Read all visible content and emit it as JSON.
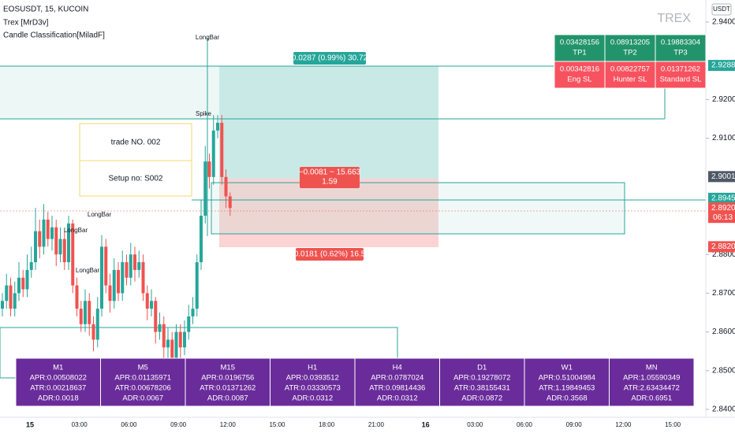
{
  "header": {
    "symbol": "EOSUSDT, 15, KUCOIN",
    "indicators": [
      "Trex [MrD3v]",
      "Candle Classification[MiladF]"
    ],
    "watermark": "TREX",
    "currency": "USDT"
  },
  "price_axis": {
    "ticks": [
      {
        "value": 2.94,
        "label": "2.9400"
      },
      {
        "value": 2.92,
        "label": "2.9200"
      },
      {
        "value": 2.91,
        "label": "2.9100"
      },
      {
        "value": 2.88,
        "label": "2.8800"
      },
      {
        "value": 2.87,
        "label": "2.8700"
      },
      {
        "value": 2.86,
        "label": "2.8600"
      },
      {
        "value": 2.85,
        "label": "2.8500"
      },
      {
        "value": 2.84,
        "label": "2.8400"
      }
    ],
    "badges": [
      {
        "value": 2.9288,
        "label": "2.9288",
        "kind": "tp"
      },
      {
        "value": 2.9001,
        "label": "2.9001",
        "kind": "level"
      },
      {
        "value": 2.8945,
        "label": "2.8945",
        "kind": "entry"
      },
      {
        "value": 2.892,
        "label": "2.8920",
        "kind": "last",
        "countdown": "06:13"
      },
      {
        "value": 2.882,
        "label": "2.8820",
        "kind": "sl"
      }
    ]
  },
  "time_axis": [
    "15",
    "03:00",
    "06:00",
    "09:00",
    "12:00",
    "15:00",
    "18:00",
    "21:00",
    "16",
    "03:00",
    "06:00",
    "09:00",
    "12:00",
    "15:00"
  ],
  "candles": [
    [
      2.866,
      2.87,
      2.864,
      2.868
    ],
    [
      2.868,
      2.875,
      2.866,
      2.872
    ],
    [
      2.872,
      2.874,
      2.864,
      2.866
    ],
    [
      2.866,
      2.873,
      2.864,
      2.87
    ],
    [
      2.87,
      2.878,
      2.868,
      2.874
    ],
    [
      2.874,
      2.876,
      2.869,
      2.871
    ],
    [
      2.871,
      2.88,
      2.869,
      2.876
    ],
    [
      2.876,
      2.882,
      2.874,
      2.878
    ],
    [
      2.878,
      2.892,
      2.876,
      2.886
    ],
    [
      2.886,
      2.889,
      2.879,
      2.882
    ],
    [
      2.882,
      2.893,
      2.88,
      2.889
    ],
    [
      2.889,
      2.891,
      2.882,
      2.884
    ],
    [
      2.884,
      2.89,
      2.881,
      2.887
    ],
    [
      2.887,
      2.889,
      2.877,
      2.88
    ],
    [
      2.88,
      2.887,
      2.878,
      2.884
    ],
    [
      2.884,
      2.886,
      2.876,
      2.878
    ],
    [
      2.878,
      2.89,
      2.876,
      2.888
    ],
    [
      2.888,
      2.889,
      2.87,
      2.872
    ],
    [
      2.872,
      2.874,
      2.864,
      2.866
    ],
    [
      2.866,
      2.868,
      2.86,
      2.862
    ],
    [
      2.862,
      2.871,
      2.86,
      2.868
    ],
    [
      2.868,
      2.87,
      2.859,
      2.862
    ],
    [
      2.862,
      2.864,
      2.855,
      2.858
    ],
    [
      2.858,
      2.869,
      2.856,
      2.866
    ],
    [
      2.866,
      2.885,
      2.864,
      2.882
    ],
    [
      2.882,
      2.884,
      2.87,
      2.872
    ],
    [
      2.872,
      2.875,
      2.865,
      2.868
    ],
    [
      2.868,
      2.879,
      2.866,
      2.876
    ],
    [
      2.876,
      2.878,
      2.868,
      2.87
    ],
    [
      2.87,
      2.881,
      2.868,
      2.878
    ],
    [
      2.878,
      2.88,
      2.872,
      2.874
    ],
    [
      2.874,
      2.883,
      2.872,
      2.88
    ],
    [
      2.88,
      2.882,
      2.873,
      2.876
    ],
    [
      2.876,
      2.881,
      2.874,
      2.878
    ],
    [
      2.878,
      2.88,
      2.868,
      2.87
    ],
    [
      2.87,
      2.872,
      2.863,
      2.866
    ],
    [
      2.866,
      2.871,
      2.864,
      2.868
    ],
    [
      2.868,
      2.869,
      2.857,
      2.86
    ],
    [
      2.86,
      2.865,
      2.858,
      2.862
    ],
    [
      2.862,
      2.864,
      2.853,
      2.856
    ],
    [
      2.856,
      2.861,
      2.852,
      2.858
    ],
    [
      2.858,
      2.86,
      2.849,
      2.852
    ],
    [
      2.852,
      2.862,
      2.851,
      2.86
    ],
    [
      2.86,
      2.862,
      2.853,
      2.856
    ],
    [
      2.856,
      2.863,
      2.854,
      2.86
    ],
    [
      2.86,
      2.867,
      2.858,
      2.864
    ],
    [
      2.864,
      2.869,
      2.862,
      2.866
    ],
    [
      2.866,
      2.88,
      2.864,
      2.878
    ],
    [
      2.878,
      2.894,
      2.876,
      2.89
    ],
    [
      2.89,
      2.908,
      2.888,
      2.904
    ],
    [
      2.904,
      2.906,
      2.897,
      2.9
    ],
    [
      2.9,
      2.916,
      2.898,
      2.912
    ],
    [
      2.912,
      2.916,
      2.91,
      2.914
    ],
    [
      2.914,
      2.916,
      2.898,
      2.9
    ],
    [
      2.9,
      2.902,
      2.892,
      2.895
    ],
    [
      2.895,
      2.896,
      2.89,
      2.892
    ]
  ],
  "annotations": [
    "LongBar",
    "Spike",
    "LongBar",
    "LongBar",
    "LongBar"
  ],
  "trade_box": {
    "trade": "trade NO. 002",
    "setup": "Setup no: S002"
  },
  "position": {
    "target": "0.0287 (0.99%) 30.72",
    "open": "−0.0081 ~ 15.663",
    "ratio": "1.59",
    "stop": "0.0181 (0.62%) 16.5"
  },
  "targets_table": {
    "tp": [
      [
        "0.03428156",
        "TP1"
      ],
      [
        "0.08913205",
        "TP2"
      ],
      [
        "0.19883304",
        "TP3"
      ]
    ],
    "sl": [
      [
        "0.00342816",
        "Eng SL"
      ],
      [
        "0.00822757",
        "Hunter SL"
      ],
      [
        "0.01371262",
        "Standard SL"
      ]
    ]
  },
  "stats": [
    [
      "M1",
      "APR:0.00508022",
      "ATR:0.00218637",
      "ADR:0.0018"
    ],
    [
      "M5",
      "APR:0.01135971",
      "ATR:0.00678206",
      "ADR:0.0067"
    ],
    [
      "M15",
      "APR:0.0196756",
      "ATR:0.01371262",
      "ADR:0.0087"
    ],
    [
      "H1",
      "APR:0.0393512",
      "ATR:0.03330573",
      "ADR:0.0312"
    ],
    [
      "H4",
      "APR:0.0787024",
      "ATR:0.09814436",
      "ADR:0.0312"
    ],
    [
      "D1",
      "APR:0.19278072",
      "ATR:0.38155431",
      "ADR:0.0872"
    ],
    [
      "W1",
      "APR:0.51004984",
      "ATR:1.19849453",
      "ADR:0.3568"
    ],
    [
      "MN",
      "APR:1.05590349",
      "ATR:2.63434472",
      "ADR:0.6951"
    ]
  ]
}
